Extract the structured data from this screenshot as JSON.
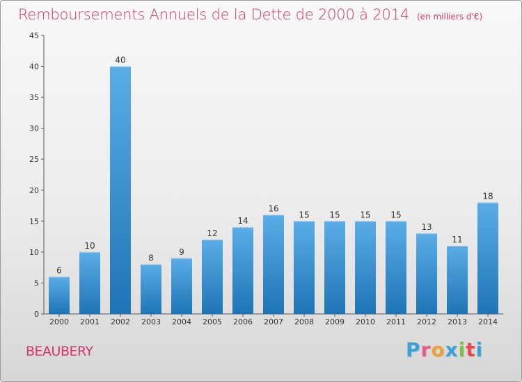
{
  "title": "Remboursements Annuels de la Dette de 2000 à 2014",
  "unit": "(en milliers d'€)",
  "commune": "BEAUBERY",
  "logo": {
    "letters": [
      "P",
      "r",
      "o",
      "x",
      "i",
      "t",
      "i"
    ],
    "colors": [
      "#3aa0d8",
      "#e85a8a",
      "#f0a030",
      "#3aa0d8",
      "#7cc242",
      "#e84a4a",
      "#3aa0d8"
    ]
  },
  "colors": {
    "title": "#d6336c",
    "bar_light": "#5aade6",
    "bar_dark": "#1f74b5"
  },
  "chart_data": {
    "type": "bar",
    "title": "Remboursements Annuels de la Dette de 2000 à 2014",
    "xlabel": "",
    "ylabel": "",
    "ylim": [
      0,
      45
    ],
    "yticks": [
      0,
      5,
      10,
      15,
      20,
      25,
      30,
      35,
      40,
      45
    ],
    "grid": false,
    "categories": [
      "2000",
      "2001",
      "2002",
      "2003",
      "2004",
      "2005",
      "2006",
      "2007",
      "2008",
      "2009",
      "2010",
      "2011",
      "2012",
      "2013",
      "2014"
    ],
    "values": [
      6,
      10,
      40,
      8,
      9,
      12,
      14,
      16,
      15,
      15,
      15,
      15,
      13,
      11,
      18
    ]
  }
}
